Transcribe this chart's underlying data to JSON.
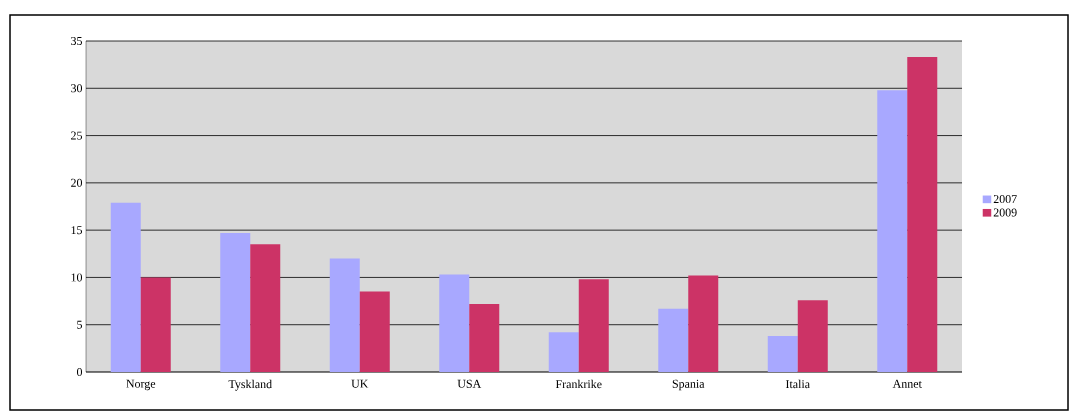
{
  "chart_data": {
    "type": "bar",
    "categories": [
      "Norge",
      "Tyskland",
      "UK",
      "USA",
      "Frankrike",
      "Spania",
      "Italia",
      "Annet"
    ],
    "series": [
      {
        "name": "2007",
        "color": "#a8a8ff",
        "values": [
          17.9,
          14.7,
          12,
          10.3,
          4.2,
          6.7,
          3.8,
          29.8
        ]
      },
      {
        "name": "2009",
        "color": "#cc3366",
        "values": [
          10,
          13.5,
          8.5,
          7.2,
          9.8,
          10.2,
          7.6,
          33.3
        ]
      }
    ],
    "ylim": [
      0,
      35
    ],
    "yticks": [
      0,
      5,
      10,
      15,
      20,
      25,
      30,
      35
    ],
    "grid": "y",
    "legend": "right"
  }
}
